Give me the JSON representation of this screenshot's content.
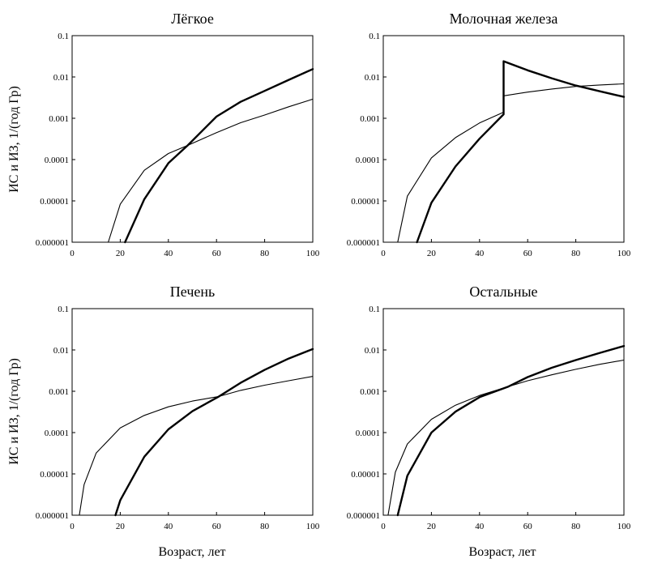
{
  "figure": {
    "ylabel": "ИС и ИЗ, 1/(год Гр)",
    "xlabel": "Возраст, лет"
  },
  "chart_data": [
    {
      "type": "line",
      "title": "Лёгкое",
      "xlabel": "",
      "ylabel": "ИС и ИЗ, 1/(год Гр)",
      "xlim": [
        0,
        100
      ],
      "ylim": [
        1e-06,
        0.1
      ],
      "yscale": "log",
      "xticks": [
        "0",
        "20",
        "40",
        "60",
        "80",
        "100"
      ],
      "yticks": [
        "0.000001",
        "0.00001",
        "0.0001",
        "0.001",
        "0.01",
        "0.1"
      ],
      "series": [
        {
          "name": "thin",
          "x": [
            15,
            20,
            30,
            40,
            48,
            60,
            70,
            80,
            90,
            100
          ],
          "y": [
            1e-06,
            8.3e-06,
            5.5e-05,
            0.00014,
            0.00022,
            0.00045,
            0.00078,
            0.0012,
            0.0019,
            0.0029
          ]
        },
        {
          "name": "thick",
          "x": [
            22,
            30,
            40,
            48,
            60,
            70,
            80,
            90,
            100
          ],
          "y": [
            1e-06,
            1.1e-05,
            8.2e-05,
            0.00022,
            0.0011,
            0.0025,
            0.0046,
            0.0085,
            0.0155
          ]
        }
      ]
    },
    {
      "type": "line",
      "title": "Молочная железа",
      "xlabel": "",
      "ylabel": "",
      "xlim": [
        0,
        100
      ],
      "ylim": [
        1e-06,
        0.1
      ],
      "yscale": "log",
      "xticks": [
        "0",
        "20",
        "40",
        "60",
        "80",
        "100"
      ],
      "yticks": [
        "0.000001",
        "0.00001",
        "0.0001",
        "0.001",
        "0.01",
        "0.1"
      ],
      "series": [
        {
          "name": "thin",
          "x": [
            6,
            10,
            20,
            30,
            40,
            50,
            50,
            60,
            70,
            80,
            90,
            100
          ],
          "y": [
            1e-06,
            1.3e-05,
            0.00011,
            0.00034,
            0.00077,
            0.0014,
            0.0035,
            0.0043,
            0.0051,
            0.0059,
            0.0064,
            0.0068
          ]
        },
        {
          "name": "thick",
          "x": [
            14,
            20,
            30,
            40,
            50,
            50,
            60,
            70,
            80,
            90,
            100
          ],
          "y": [
            1e-06,
            9e-06,
            6.8e-05,
            0.00032,
            0.00125,
            0.024,
            0.0145,
            0.0093,
            0.0062,
            0.0045,
            0.0033
          ]
        }
      ]
    },
    {
      "type": "line",
      "title": "Печень",
      "xlabel": "Возраст, лет",
      "ylabel": "ИС и ИЗ, 1/(год Гр)",
      "xlim": [
        0,
        100
      ],
      "ylim": [
        1e-06,
        0.1
      ],
      "yscale": "log",
      "xticks": [
        "0",
        "20",
        "40",
        "60",
        "80",
        "100"
      ],
      "yticks": [
        "0.000001",
        "0.00001",
        "0.0001",
        "0.001",
        "0.01",
        "0.1"
      ],
      "series": [
        {
          "name": "thin",
          "x": [
            3,
            5,
            10,
            20,
            30,
            40,
            50,
            61,
            70,
            80,
            90,
            100
          ],
          "y": [
            1e-06,
            5.5e-06,
            3.2e-05,
            0.00013,
            0.00026,
            0.00042,
            0.00058,
            0.00075,
            0.00105,
            0.0014,
            0.0018,
            0.0023
          ]
        },
        {
          "name": "thick",
          "x": [
            18,
            20,
            30,
            40,
            50,
            61,
            70,
            80,
            90,
            100
          ],
          "y": [
            1e-06,
            2.3e-06,
            2.6e-05,
            0.00012,
            0.00033,
            0.00075,
            0.0016,
            0.0033,
            0.0062,
            0.0105
          ]
        }
      ]
    },
    {
      "type": "line",
      "title": "Остальные",
      "xlabel": "Возраст, лет",
      "ylabel": "",
      "xlim": [
        0,
        100
      ],
      "ylim": [
        1e-06,
        0.1
      ],
      "yscale": "log",
      "xticks": [
        "0",
        "20",
        "40",
        "60",
        "80",
        "100"
      ],
      "yticks": [
        "0.000001",
        "0.00001",
        "0.0001",
        "0.001",
        "0.01",
        "0.1"
      ],
      "series": [
        {
          "name": "thin",
          "x": [
            2,
            5,
            10,
            20,
            30,
            40,
            52,
            60,
            70,
            80,
            90,
            100
          ],
          "y": [
            1e-06,
            1.1e-05,
            5.3e-05,
            0.00021,
            0.00046,
            0.00079,
            0.0013,
            0.0018,
            0.0025,
            0.0034,
            0.0045,
            0.0057
          ]
        },
        {
          "name": "thick",
          "x": [
            6,
            10,
            20,
            30,
            40,
            52,
            60,
            70,
            80,
            90,
            100
          ],
          "y": [
            1e-06,
            9e-06,
            0.0001,
            0.00032,
            0.00072,
            0.0013,
            0.0022,
            0.0037,
            0.0057,
            0.0085,
            0.0125
          ]
        }
      ]
    }
  ]
}
